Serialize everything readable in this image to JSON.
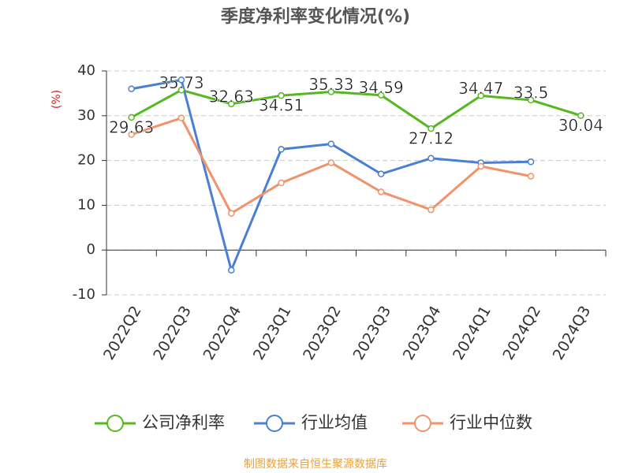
{
  "chart_data": {
    "type": "line",
    "title": "季度净利率变化情况(%)",
    "y_label": "(%)",
    "categories": [
      "2022Q2",
      "2022Q3",
      "2022Q4",
      "2023Q1",
      "2023Q2",
      "2023Q3",
      "2023Q4",
      "2024Q1",
      "2024Q2",
      "2024Q3"
    ],
    "series": [
      {
        "name": "公司净利率",
        "color": "#55b81f",
        "values": [
          29.63,
          35.73,
          32.63,
          34.51,
          35.33,
          34.59,
          27.12,
          34.47,
          33.5,
          30.04
        ],
        "data_labels": true
      },
      {
        "name": "行业均值",
        "color": "#4a7fd4",
        "values": [
          36,
          38,
          -4.5,
          22.5,
          23.7,
          17,
          20.5,
          19.5,
          19.7,
          null
        ],
        "data_labels": false
      },
      {
        "name": "行业中位数",
        "color": "#f0926a",
        "values": [
          25.8,
          29.5,
          8.2,
          15,
          19.5,
          13,
          9,
          18.7,
          16.5,
          null
        ],
        "data_labels": false
      }
    ],
    "ylim": [
      -10,
      40
    ],
    "yticks": [
      -10,
      0,
      10,
      20,
      30,
      40
    ],
    "grid": true,
    "source": "制图数据来自恒生聚源数据库"
  }
}
